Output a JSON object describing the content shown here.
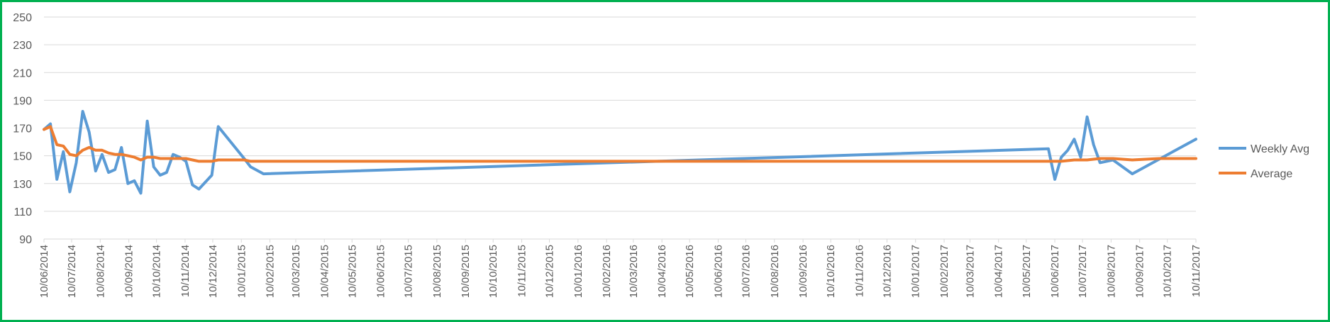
{
  "chart_data": {
    "type": "line",
    "title": "",
    "xlabel": "",
    "ylabel": "",
    "ylim": [
      90,
      250
    ],
    "yticks": [
      90,
      110,
      130,
      150,
      170,
      190,
      210,
      230,
      250
    ],
    "grid": true,
    "legend_position": "right",
    "x_range": [
      "2014-06-10",
      "2017-11-10"
    ],
    "x_tick_labels": [
      "10/06/2014",
      "10/07/2014",
      "10/08/2014",
      "10/09/2014",
      "10/10/2014",
      "10/11/2014",
      "10/12/2014",
      "10/01/2015",
      "10/02/2015",
      "10/03/2015",
      "10/04/2015",
      "10/05/2015",
      "10/06/2015",
      "10/07/2015",
      "10/08/2015",
      "10/09/2015",
      "10/10/2015",
      "10/11/2015",
      "10/12/2015",
      "10/01/2016",
      "10/02/2016",
      "10/03/2016",
      "10/04/2016",
      "10/05/2016",
      "10/06/2016",
      "10/07/2016",
      "10/08/2016",
      "10/09/2016",
      "10/10/2016",
      "10/11/2016",
      "10/12/2016",
      "10/01/2017",
      "10/02/2017",
      "10/03/2017",
      "10/04/2017",
      "10/05/2017",
      "10/06/2017",
      "10/07/2017",
      "10/08/2017",
      "10/09/2017",
      "10/10/2017",
      "10/11/2017"
    ],
    "series": [
      {
        "name": "Weekly Avg",
        "color": "#5b9bd5",
        "points": [
          [
            "2014-06-10",
            169
          ],
          [
            "2014-06-17",
            173
          ],
          [
            "2014-06-24",
            133
          ],
          [
            "2014-07-01",
            153
          ],
          [
            "2014-07-08",
            124
          ],
          [
            "2014-07-15",
            145
          ],
          [
            "2014-07-22",
            182
          ],
          [
            "2014-07-29",
            167
          ],
          [
            "2014-08-05",
            139
          ],
          [
            "2014-08-12",
            151
          ],
          [
            "2014-08-19",
            138
          ],
          [
            "2014-08-26",
            140
          ],
          [
            "2014-09-02",
            156
          ],
          [
            "2014-09-09",
            130
          ],
          [
            "2014-09-16",
            132
          ],
          [
            "2014-09-23",
            123
          ],
          [
            "2014-09-30",
            175
          ],
          [
            "2014-10-07",
            142
          ],
          [
            "2014-10-14",
            136
          ],
          [
            "2014-10-21",
            138
          ],
          [
            "2014-10-28",
            151
          ],
          [
            "2014-11-04",
            149
          ],
          [
            "2014-11-11",
            146
          ],
          [
            "2014-11-18",
            129
          ],
          [
            "2014-11-25",
            126
          ],
          [
            "2014-12-09",
            136
          ],
          [
            "2014-12-16",
            171
          ],
          [
            "2015-01-13",
            148
          ],
          [
            "2015-01-20",
            142
          ],
          [
            "2015-02-03",
            137
          ],
          [
            "2017-06-03",
            155
          ],
          [
            "2017-06-10",
            133
          ],
          [
            "2017-06-17",
            149
          ],
          [
            "2017-06-24",
            154
          ],
          [
            "2017-07-01",
            162
          ],
          [
            "2017-07-08",
            149
          ],
          [
            "2017-07-15",
            178
          ],
          [
            "2017-07-22",
            158
          ],
          [
            "2017-07-29",
            145
          ],
          [
            "2017-08-12",
            147
          ],
          [
            "2017-09-02",
            137
          ],
          [
            "2017-11-10",
            162
          ]
        ]
      },
      {
        "name": "Average",
        "color": "#ed7d31",
        "points": [
          [
            "2014-06-10",
            169
          ],
          [
            "2014-06-17",
            171
          ],
          [
            "2014-06-24",
            158
          ],
          [
            "2014-07-01",
            157
          ],
          [
            "2014-07-08",
            151
          ],
          [
            "2014-07-15",
            150
          ],
          [
            "2014-07-22",
            154
          ],
          [
            "2014-07-29",
            156
          ],
          [
            "2014-08-05",
            154
          ],
          [
            "2014-08-12",
            154
          ],
          [
            "2014-08-19",
            152
          ],
          [
            "2014-08-26",
            151
          ],
          [
            "2014-09-02",
            151
          ],
          [
            "2014-09-09",
            150
          ],
          [
            "2014-09-16",
            149
          ],
          [
            "2014-09-23",
            147
          ],
          [
            "2014-09-30",
            149
          ],
          [
            "2014-10-07",
            149
          ],
          [
            "2014-10-14",
            148
          ],
          [
            "2014-10-21",
            148
          ],
          [
            "2014-10-28",
            148
          ],
          [
            "2014-11-04",
            148
          ],
          [
            "2014-11-11",
            148
          ],
          [
            "2014-11-18",
            147
          ],
          [
            "2014-11-25",
            146
          ],
          [
            "2014-12-09",
            146
          ],
          [
            "2014-12-16",
            147
          ],
          [
            "2015-01-13",
            147
          ],
          [
            "2015-01-20",
            146
          ],
          [
            "2015-02-03",
            146
          ],
          [
            "2016-06-01",
            146
          ],
          [
            "2017-06-03",
            146
          ],
          [
            "2017-06-10",
            146
          ],
          [
            "2017-06-17",
            146
          ],
          [
            "2017-07-01",
            147
          ],
          [
            "2017-07-15",
            147
          ],
          [
            "2017-07-29",
            148
          ],
          [
            "2017-08-12",
            148
          ],
          [
            "2017-09-02",
            147
          ],
          [
            "2017-10-01",
            148
          ],
          [
            "2017-11-10",
            148
          ]
        ]
      }
    ]
  }
}
